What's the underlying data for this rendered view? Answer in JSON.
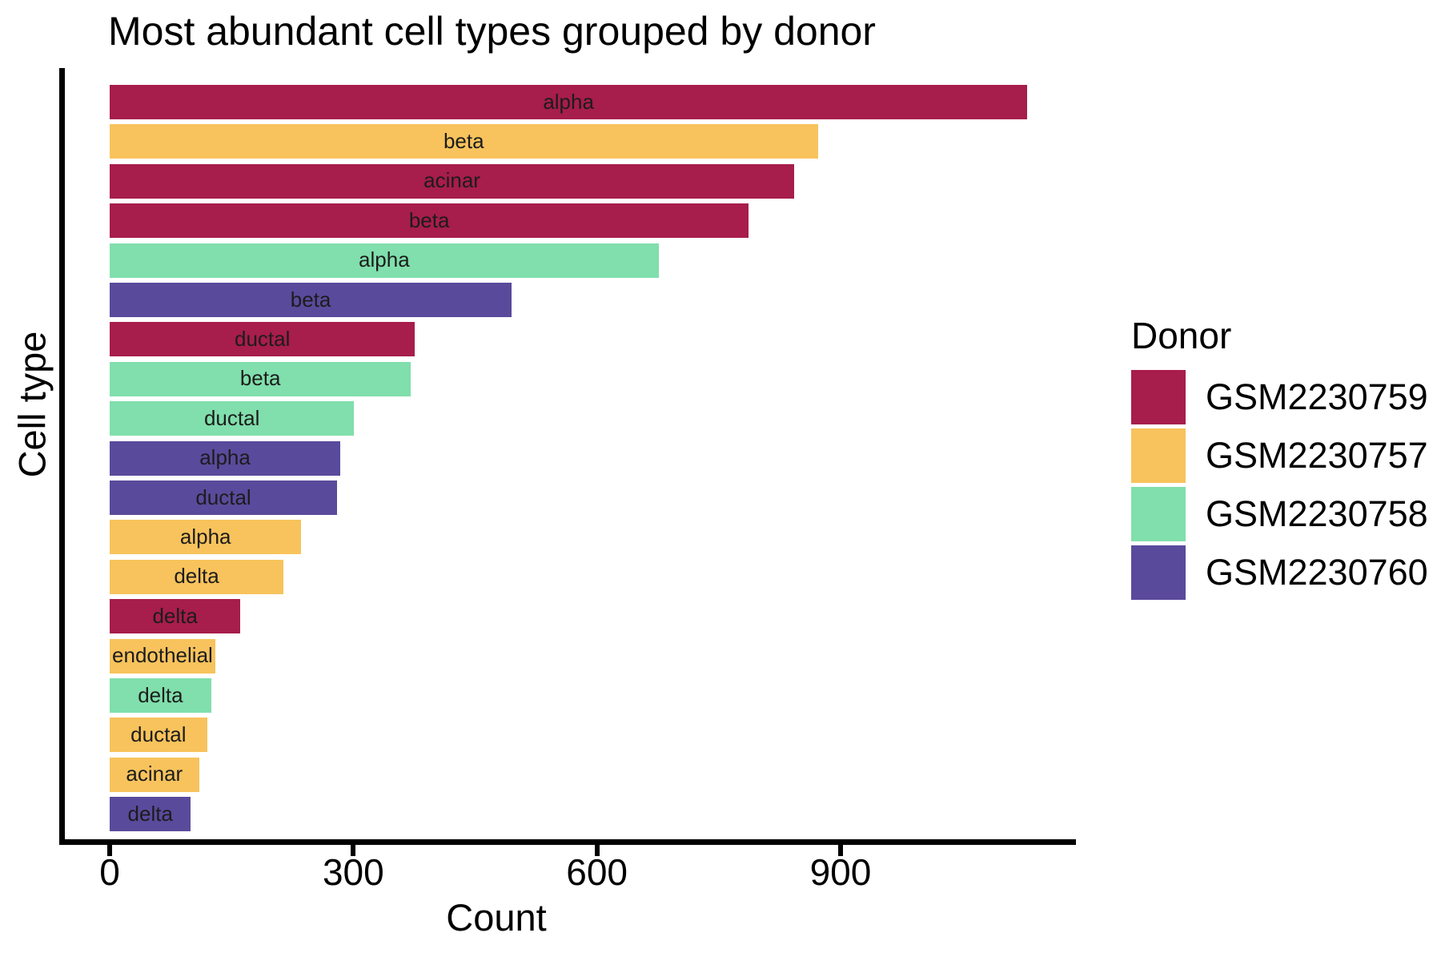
{
  "title": "Most abundant cell types grouped by donor",
  "chart_data": {
    "type": "bar",
    "orientation": "horizontal",
    "title": "Most abundant cell types grouped by donor",
    "xlabel": "Count",
    "ylabel": "Cell type",
    "xlim": [
      0,
      1190
    ],
    "xticks": [
      0,
      300,
      600,
      900
    ],
    "grid": "off",
    "legend": {
      "title": "Donor",
      "position": "right",
      "entries": [
        {
          "label": "GSM2230759",
          "color": "#a71d4b"
        },
        {
          "label": "GSM2230757",
          "color": "#f8c35c"
        },
        {
          "label": "GSM2230758",
          "color": "#80dfac"
        },
        {
          "label": "GSM2230760",
          "color": "#5a4a9c"
        }
      ]
    },
    "bars": [
      {
        "label": "alpha",
        "donor": "GSM2230759",
        "value": 1130
      },
      {
        "label": "beta",
        "donor": "GSM2230757",
        "value": 872
      },
      {
        "label": "acinar",
        "donor": "GSM2230759",
        "value": 843
      },
      {
        "label": "beta",
        "donor": "GSM2230759",
        "value": 787
      },
      {
        "label": "alpha",
        "donor": "GSM2230758",
        "value": 676
      },
      {
        "label": "beta",
        "donor": "GSM2230760",
        "value": 495
      },
      {
        "label": "ductal",
        "donor": "GSM2230759",
        "value": 376
      },
      {
        "label": "beta",
        "donor": "GSM2230758",
        "value": 371
      },
      {
        "label": "ductal",
        "donor": "GSM2230758",
        "value": 301
      },
      {
        "label": "alpha",
        "donor": "GSM2230760",
        "value": 284
      },
      {
        "label": "ductal",
        "donor": "GSM2230760",
        "value": 280
      },
      {
        "label": "alpha",
        "donor": "GSM2230757",
        "value": 236
      },
      {
        "label": "delta",
        "donor": "GSM2230757",
        "value": 214
      },
      {
        "label": "delta",
        "donor": "GSM2230759",
        "value": 161
      },
      {
        "label": "endothelial",
        "donor": "GSM2230757",
        "value": 130
      },
      {
        "label": "delta",
        "donor": "GSM2230758",
        "value": 125
      },
      {
        "label": "ductal",
        "donor": "GSM2230757",
        "value": 120
      },
      {
        "label": "acinar",
        "donor": "GSM2230757",
        "value": 110
      },
      {
        "label": "delta",
        "donor": "GSM2230760",
        "value": 100
      }
    ]
  }
}
